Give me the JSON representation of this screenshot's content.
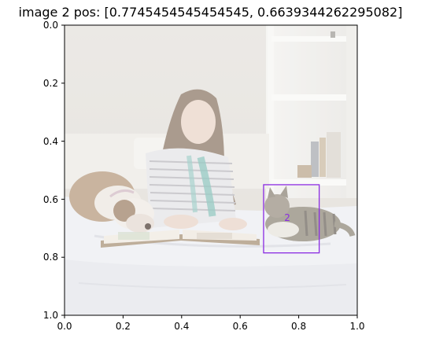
{
  "title": "image 2   pos: [0.7745454545454545, 0.6639344262295082]",
  "axes": {
    "x_ticks": [
      "0.0",
      "0.2",
      "0.4",
      "0.6",
      "0.8",
      "1.0"
    ],
    "y_ticks": [
      "0.0",
      "0.2",
      "0.4",
      "0.6",
      "0.8",
      "1.0"
    ],
    "xlim": [
      0,
      1
    ],
    "ylim": [
      1,
      0
    ]
  },
  "photo": {
    "description_tags": [
      "bedroom",
      "bed",
      "woman",
      "dog",
      "cat",
      "book",
      "shelf"
    ]
  },
  "bbox_annotation": {
    "label": "2",
    "color": "#8a2be2",
    "x_range": [
      0.68,
      0.87
    ],
    "y_range": [
      0.55,
      0.785
    ],
    "pos": [
      0.7745454545454545,
      0.6639344262295082
    ]
  }
}
